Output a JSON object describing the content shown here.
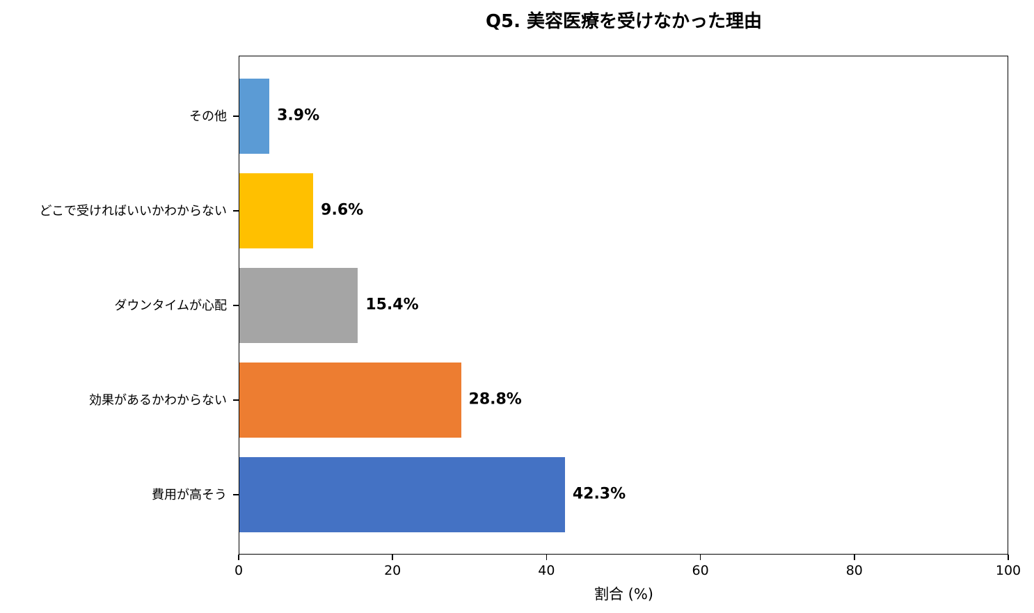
{
  "chart_data": {
    "type": "bar",
    "orientation": "horizontal",
    "title": "Q5. 美容医療を受けなかった理由",
    "xlabel": "割合 (%)",
    "ylabel": "",
    "xlim": [
      0,
      100
    ],
    "xticks": [
      "0",
      "20",
      "40",
      "60",
      "80",
      "100"
    ],
    "grid": false,
    "legend": null,
    "categories": [
      "その他",
      "どこで受ければいいかわからない",
      "ダウンタイムが心配",
      "効果があるかわからない",
      "費用が高そう"
    ],
    "values": [
      3.9,
      9.6,
      15.4,
      28.8,
      42.3
    ],
    "value_labels": [
      "3.9%",
      "9.6%",
      "15.4%",
      "28.8%",
      "42.3%"
    ],
    "colors": [
      "#5b9bd5",
      "#ffc000",
      "#a5a5a5",
      "#ed7d31",
      "#4472c4"
    ]
  }
}
